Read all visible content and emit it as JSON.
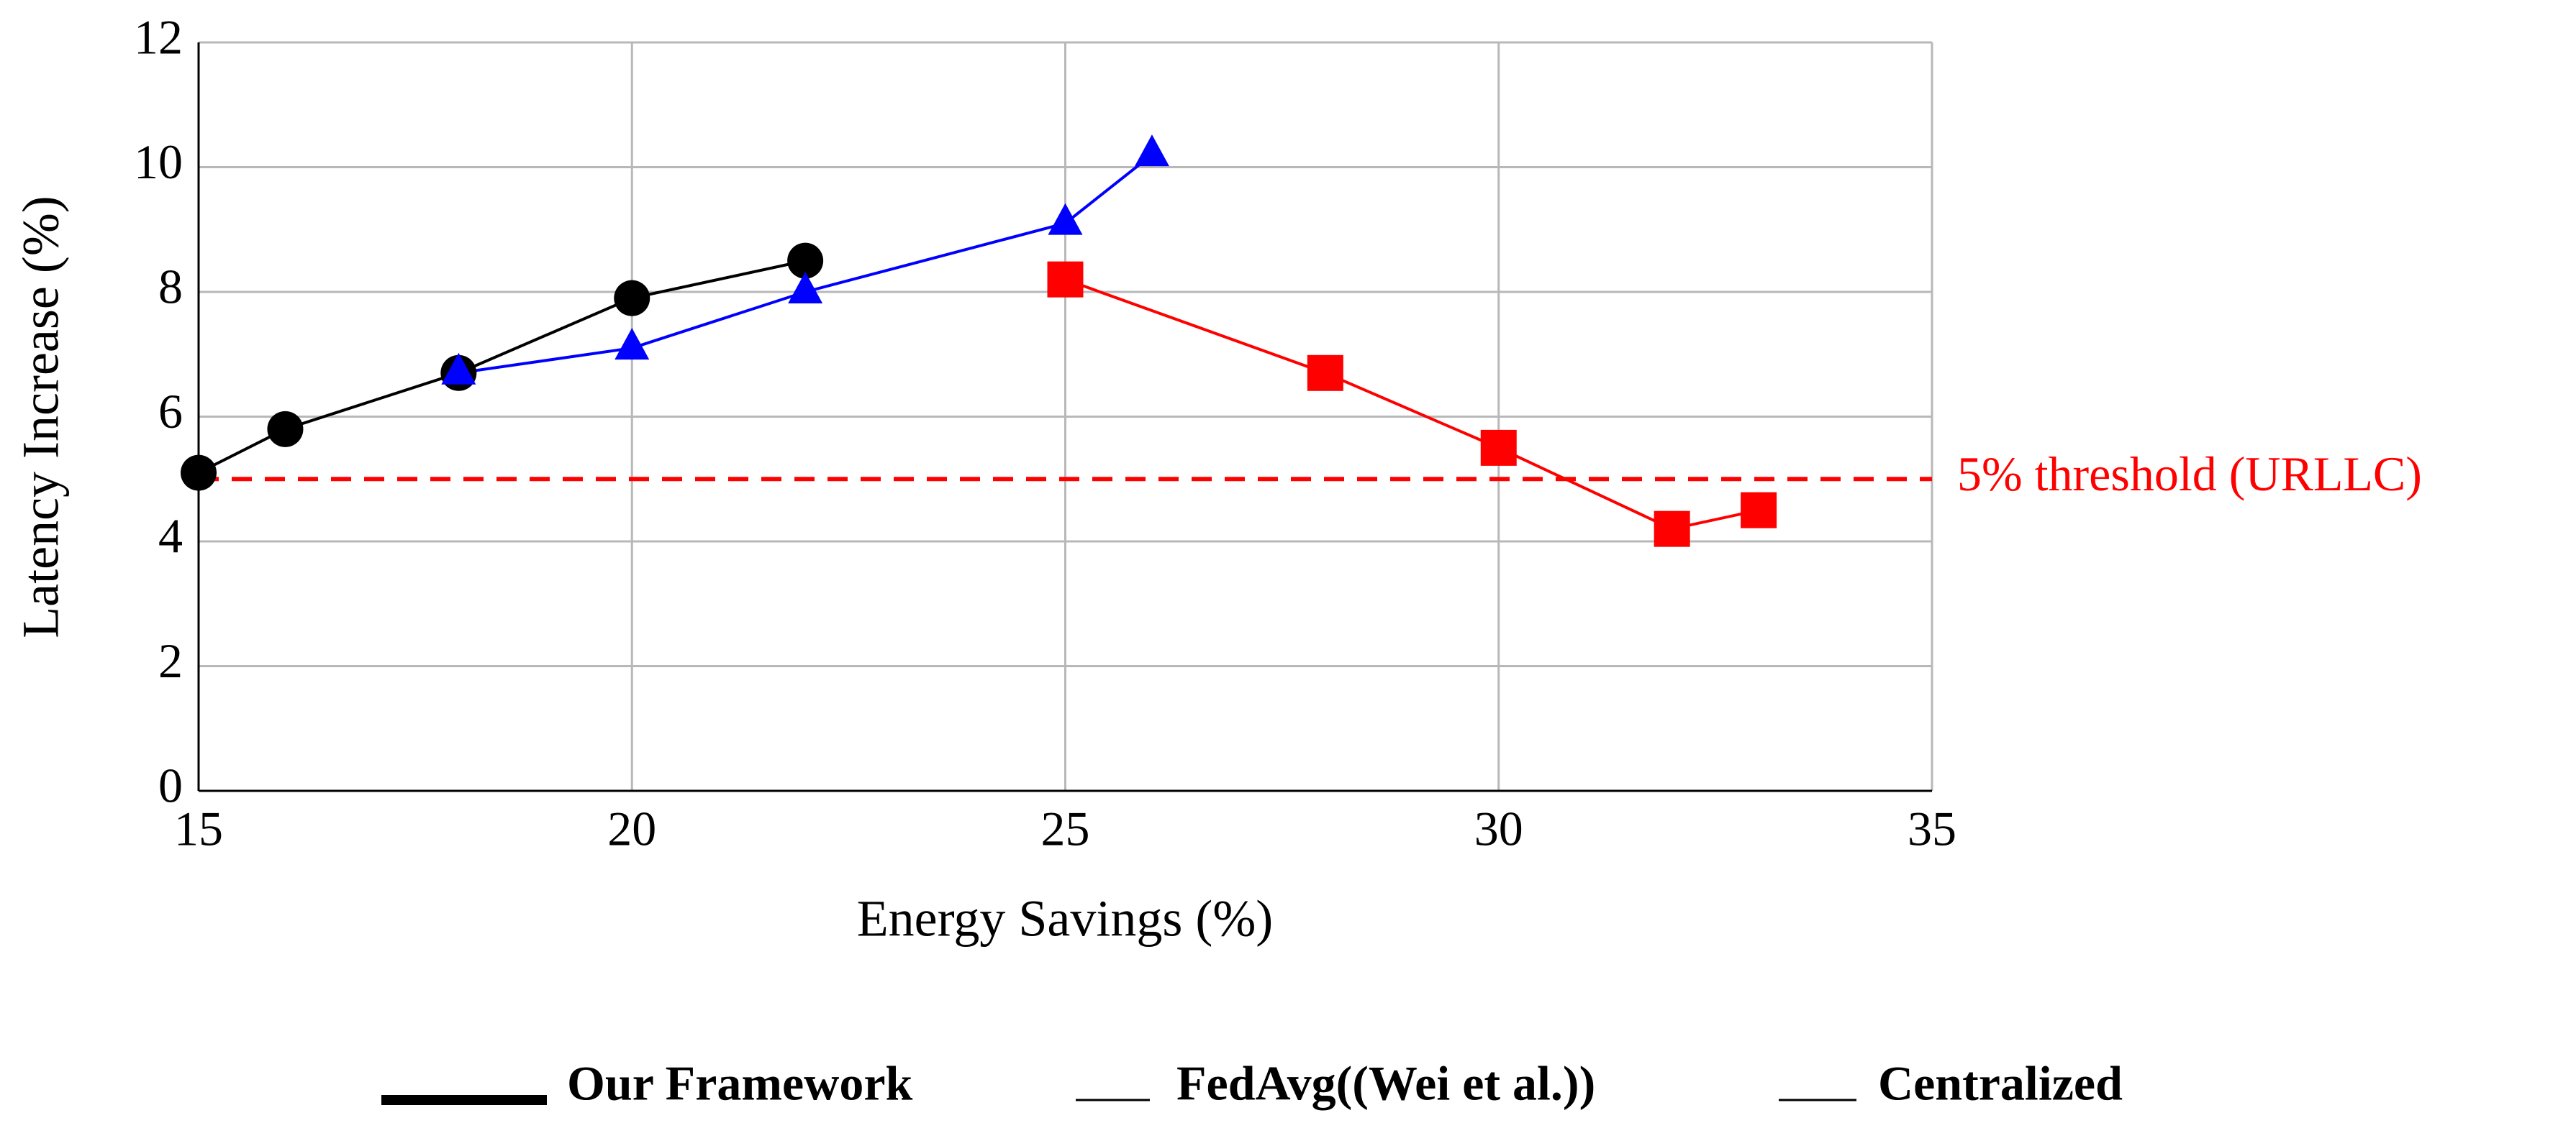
{
  "chart_data": {
    "type": "line",
    "xlabel": "Energy Savings (%)",
    "ylabel": "Latency Increase (%)",
    "xlim": [
      15,
      35
    ],
    "xticks": [
      15,
      20,
      25,
      30,
      35
    ],
    "ylim": [
      0,
      12
    ],
    "yticks": [
      0,
      2,
      4,
      6,
      8,
      10,
      12
    ],
    "grid": true,
    "series": [
      {
        "name": "Our Framework",
        "color": "#000000",
        "marker": "circle",
        "x": [
          15,
          16,
          18,
          20,
          22
        ],
        "values": [
          5.1,
          5.8,
          6.7,
          7.9,
          8.5
        ]
      },
      {
        "name": "FedAvg((Wei et al.))",
        "color": "#0000ff",
        "marker": "triangle",
        "x": [
          18,
          20,
          22,
          25,
          26
        ],
        "values": [
          6.7,
          7.1,
          8.0,
          9.1,
          10.2
        ]
      },
      {
        "name": "Centralized",
        "color": "#ff0000",
        "marker": "square",
        "x": [
          25,
          28,
          30,
          32,
          33
        ],
        "values": [
          8.2,
          6.7,
          5.5,
          4.2,
          4.5
        ]
      }
    ],
    "threshold": {
      "value": 5,
      "label": "5% threshold (URLLC)",
      "color": "#ff0000"
    }
  }
}
